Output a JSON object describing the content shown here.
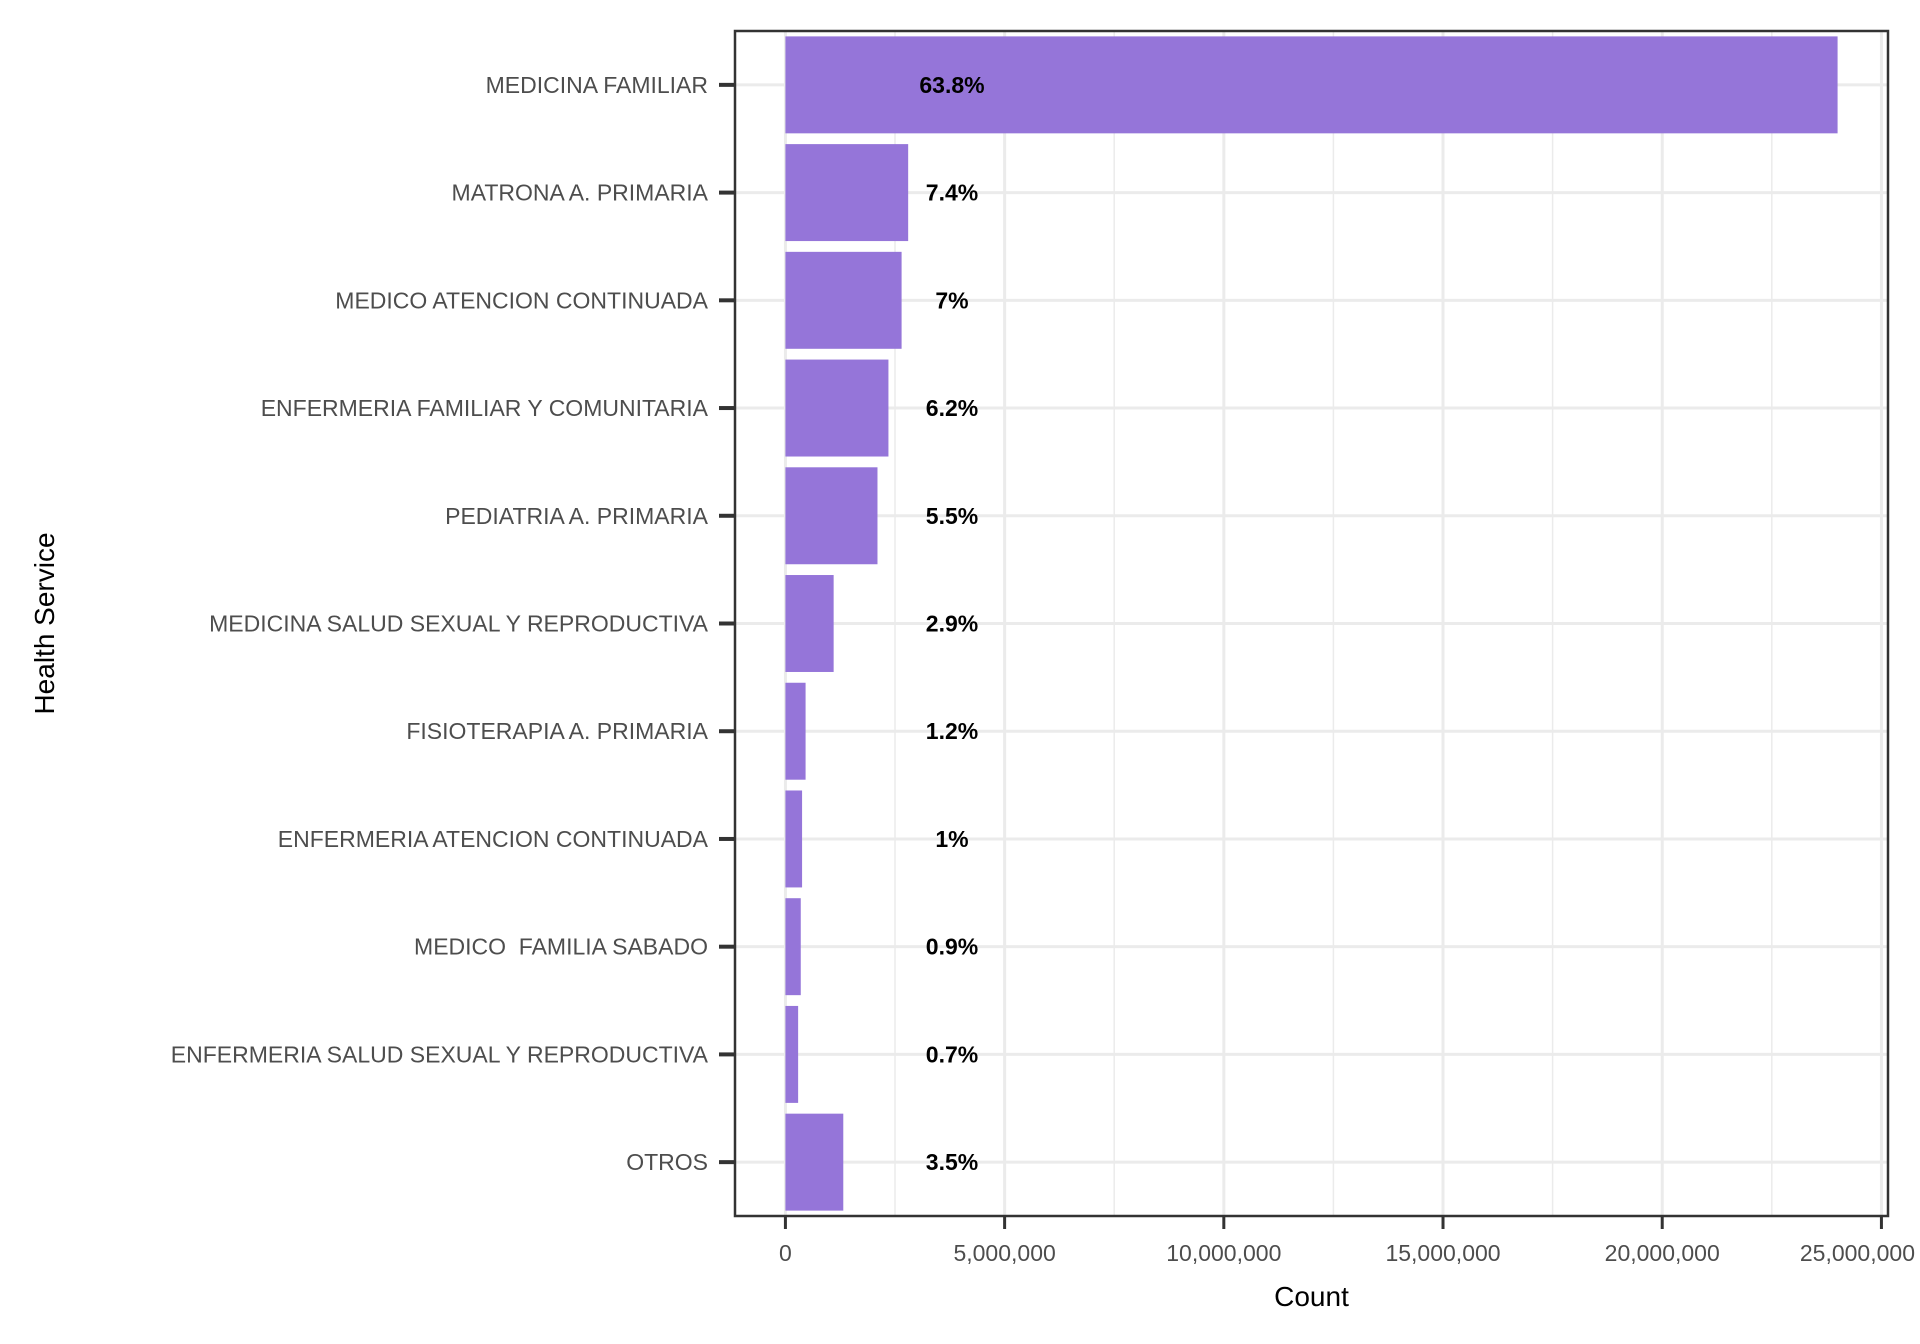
{
  "chart_data": {
    "type": "bar",
    "orientation": "horizontal",
    "xlabel": "Count",
    "ylabel": "Health Service",
    "xlim": [
      -1150000,
      25150000
    ],
    "x_ticks": [
      0,
      5000000,
      10000000,
      15000000,
      20000000,
      25000000
    ],
    "x_tick_labels": [
      "0",
      "5,000,000",
      "10,000,000",
      "15,000,000",
      "20,000,000",
      "25,000,000"
    ],
    "categories": [
      "MEDICINA FAMILIAR",
      "MATRONA A. PRIMARIA",
      "MEDICO ATENCION CONTINUADA",
      "ENFERMERIA FAMILIAR Y COMUNITARIA",
      "PEDIATRIA A. PRIMARIA",
      "MEDICINA SALUD SEXUAL Y REPRODUCTIVA",
      "FISIOTERAPIA A. PRIMARIA",
      "ENFERMERIA ATENCION CONTINUADA",
      "MEDICO  FAMILIA SABADO",
      "ENFERMERIA SALUD SEXUAL Y REPRODUCTIVA",
      "OTROS"
    ],
    "values": [
      24000000,
      2800000,
      2650000,
      2350000,
      2100000,
      1100000,
      460000,
      380000,
      350000,
      290000,
      1320000
    ],
    "percent_labels": [
      "63.8%",
      "7.4%",
      "7%",
      "6.2%",
      "5.5%",
      "2.9%",
      "1.2%",
      "1%",
      "0.9%",
      "0.7%",
      "3.5%"
    ],
    "grid": true,
    "legend": "none",
    "colors": {
      "bar": "#9575d9",
      "grid": "#ebebeb",
      "frame": "#333333"
    }
  }
}
